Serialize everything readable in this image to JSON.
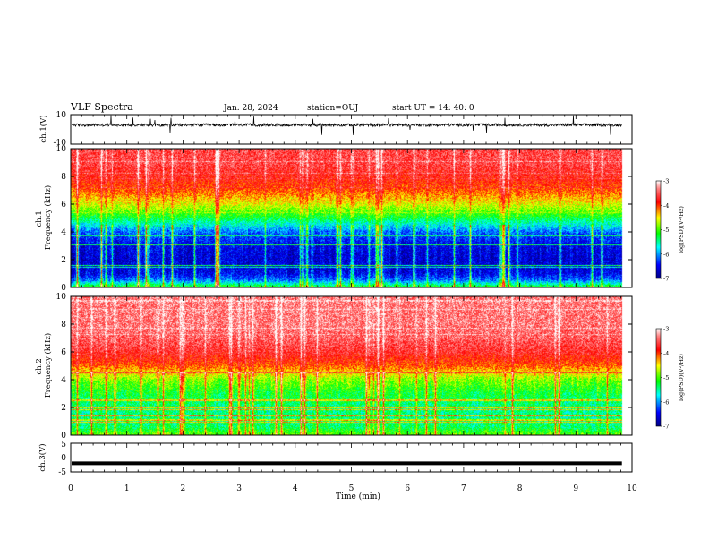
{
  "header": {
    "title": "VLF Spectra",
    "date": "Jan. 28, 2024",
    "station": "station=OUJ",
    "start": "start UT =  14: 40: 0"
  },
  "colorbar": {
    "label": "log(PSD)(V²/Hz)",
    "ticks": [
      "-3",
      "-4",
      "-5",
      "-6",
      "-7"
    ],
    "range": [
      -7,
      -3
    ],
    "colors": [
      "#000080",
      "#0000ff",
      "#00ffff",
      "#00ff00",
      "#ffff00",
      "#ff0000",
      "#ff8080",
      "#ffffff"
    ]
  },
  "chart_data": [
    {
      "type": "line",
      "name": "ch1-waveform",
      "ylabel": "ch.1(V)",
      "ylim": [
        -10,
        10
      ],
      "yticks": [
        "10",
        "-10"
      ],
      "xlim": [
        0,
        10
      ],
      "baseline": 3,
      "noise_amplitude": 2,
      "color": "#000000"
    },
    {
      "type": "heatmap",
      "name": "ch1-spectrogram",
      "ylabel": "ch.1\nFrequency (kHz)",
      "ylim": [
        0,
        10
      ],
      "yticks": [
        "0",
        "2",
        "4",
        "6",
        "8",
        "10"
      ],
      "xlim": [
        0,
        9.82
      ],
      "profile_kHz": [
        0,
        0.5,
        1,
        2,
        3,
        4,
        5,
        6,
        7,
        8,
        9,
        10
      ],
      "profile_logpsd": [
        -5.2,
        -6.2,
        -6.6,
        -6.7,
        -6.6,
        -6.2,
        -5.3,
        -4.6,
        -4.1,
        -3.8,
        -3.6,
        -3.6
      ]
    },
    {
      "type": "heatmap",
      "name": "ch2-spectrogram",
      "ylabel": "ch.2\nFrequency (kHz)",
      "ylim": [
        0,
        10
      ],
      "yticks": [
        "0",
        "2",
        "4",
        "6",
        "8",
        "10"
      ],
      "xlim": [
        0,
        9.82
      ],
      "profile_kHz": [
        0,
        0.5,
        1,
        2,
        3,
        4,
        5,
        6,
        7,
        8,
        9,
        10
      ],
      "profile_logpsd": [
        -5.0,
        -5.4,
        -5.5,
        -5.5,
        -5.3,
        -4.9,
        -4.1,
        -3.7,
        -3.5,
        -3.4,
        -3.4,
        -3.4
      ]
    },
    {
      "type": "line",
      "name": "ch3-waveform",
      "ylabel": "ch.3(V)",
      "ylim": [
        -5,
        5
      ],
      "yticks": [
        "5",
        "0",
        "-5"
      ],
      "xlim": [
        0,
        10
      ],
      "baseline": -2,
      "noise_amplitude": 0,
      "color": "#000000"
    }
  ],
  "xaxis": {
    "label": "Time (min)",
    "range": [
      0,
      10
    ],
    "ticks": [
      "0",
      "1",
      "2",
      "3",
      "4",
      "5",
      "6",
      "7",
      "8",
      "9",
      "10"
    ]
  }
}
